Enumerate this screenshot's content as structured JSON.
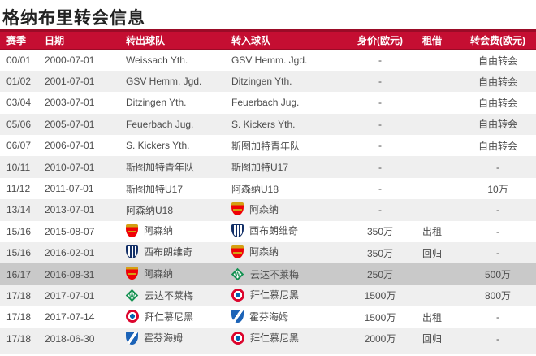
{
  "page": {
    "title": "格纳布里转会信息"
  },
  "table": {
    "columns": [
      "赛季",
      "日期",
      "转出球队",
      "转入球队",
      "身价(欧元)",
      "租借",
      "转会费(欧元)"
    ],
    "rows": [
      {
        "season": "00/01",
        "date": "2000-07-01",
        "from": {
          "name": "Weissach Yth.",
          "icon": null
        },
        "to": {
          "name": "GSV Hemm. Jgd.",
          "icon": null
        },
        "value": "-",
        "loan": "",
        "fee": "自由转会",
        "highlight": false
      },
      {
        "season": "01/02",
        "date": "2001-07-01",
        "from": {
          "name": "GSV Hemm. Jgd.",
          "icon": null
        },
        "to": {
          "name": "Ditzingen Yth.",
          "icon": null
        },
        "value": "-",
        "loan": "",
        "fee": "自由转会",
        "highlight": false
      },
      {
        "season": "03/04",
        "date": "2003-07-01",
        "from": {
          "name": "Ditzingen Yth.",
          "icon": null
        },
        "to": {
          "name": "Feuerbach Jug.",
          "icon": null
        },
        "value": "-",
        "loan": "",
        "fee": "自由转会",
        "highlight": false
      },
      {
        "season": "05/06",
        "date": "2005-07-01",
        "from": {
          "name": "Feuerbach Jug.",
          "icon": null
        },
        "to": {
          "name": "S. Kickers Yth.",
          "icon": null
        },
        "value": "-",
        "loan": "",
        "fee": "自由转会",
        "highlight": false
      },
      {
        "season": "06/07",
        "date": "2006-07-01",
        "from": {
          "name": "S. Kickers Yth.",
          "icon": null
        },
        "to": {
          "name": "斯图加特青年队",
          "icon": null
        },
        "value": "-",
        "loan": "",
        "fee": "自由转会",
        "highlight": false
      },
      {
        "season": "10/11",
        "date": "2010-07-01",
        "from": {
          "name": "斯图加特青年队",
          "icon": null
        },
        "to": {
          "name": "斯图加特U17",
          "icon": null
        },
        "value": "-",
        "loan": "",
        "fee": "-",
        "highlight": false
      },
      {
        "season": "11/12",
        "date": "2011-07-01",
        "from": {
          "name": "斯图加特U17",
          "icon": null
        },
        "to": {
          "name": "阿森纳U18",
          "icon": null
        },
        "value": "-",
        "loan": "",
        "fee": "10万",
        "highlight": false
      },
      {
        "season": "13/14",
        "date": "2013-07-01",
        "from": {
          "name": "阿森纳U18",
          "icon": null
        },
        "to": {
          "name": "阿森纳",
          "icon": "arsenal"
        },
        "value": "-",
        "loan": "",
        "fee": "-",
        "highlight": false
      },
      {
        "season": "15/16",
        "date": "2015-08-07",
        "from": {
          "name": "阿森纳",
          "icon": "arsenal"
        },
        "to": {
          "name": "西布朗维奇",
          "icon": "westbrom"
        },
        "value": "350万",
        "loan": "出租",
        "fee": "-",
        "highlight": false
      },
      {
        "season": "15/16",
        "date": "2016-02-01",
        "from": {
          "name": "西布朗维奇",
          "icon": "westbrom"
        },
        "to": {
          "name": "阿森纳",
          "icon": "arsenal"
        },
        "value": "350万",
        "loan": "回归",
        "fee": "-",
        "highlight": false
      },
      {
        "season": "16/17",
        "date": "2016-08-31",
        "from": {
          "name": "阿森纳",
          "icon": "arsenal"
        },
        "to": {
          "name": "云达不莱梅",
          "icon": "werder"
        },
        "value": "250万",
        "loan": "",
        "fee": "500万",
        "highlight": true
      },
      {
        "season": "17/18",
        "date": "2017-07-01",
        "from": {
          "name": "云达不莱梅",
          "icon": "werder"
        },
        "to": {
          "name": "拜仁慕尼黑",
          "icon": "bayern"
        },
        "value": "1500万",
        "loan": "",
        "fee": "800万",
        "highlight": false
      },
      {
        "season": "17/18",
        "date": "2017-07-14",
        "from": {
          "name": "拜仁慕尼黑",
          "icon": "bayern"
        },
        "to": {
          "name": "霍芬海姆",
          "icon": "hoffenheim"
        },
        "value": "1500万",
        "loan": "出租",
        "fee": "-",
        "highlight": false
      },
      {
        "season": "17/18",
        "date": "2018-06-30",
        "from": {
          "name": "霍芬海姆",
          "icon": "hoffenheim"
        },
        "to": {
          "name": "拜仁慕尼黑",
          "icon": "bayern"
        },
        "value": "2000万",
        "loan": "回归",
        "fee": "-",
        "highlight": false
      }
    ]
  },
  "colors": {
    "header_bg": "#C50E32",
    "header_border": "#9B0B27",
    "header_text": "#FFFFFF",
    "row_alt": "#EFEFEF",
    "row_highlight": "#C9C9C9",
    "body_text": "#4D4D4D",
    "title_text": "#222222",
    "arsenal_red": "#EF0107",
    "arsenal_gold": "#D4A012",
    "westbrom_navy": "#122F67",
    "werder_green": "#169152",
    "bayern_red": "#DC052D",
    "bayern_blue": "#0066B2",
    "hoffenheim_blue": "#1C63B7"
  }
}
